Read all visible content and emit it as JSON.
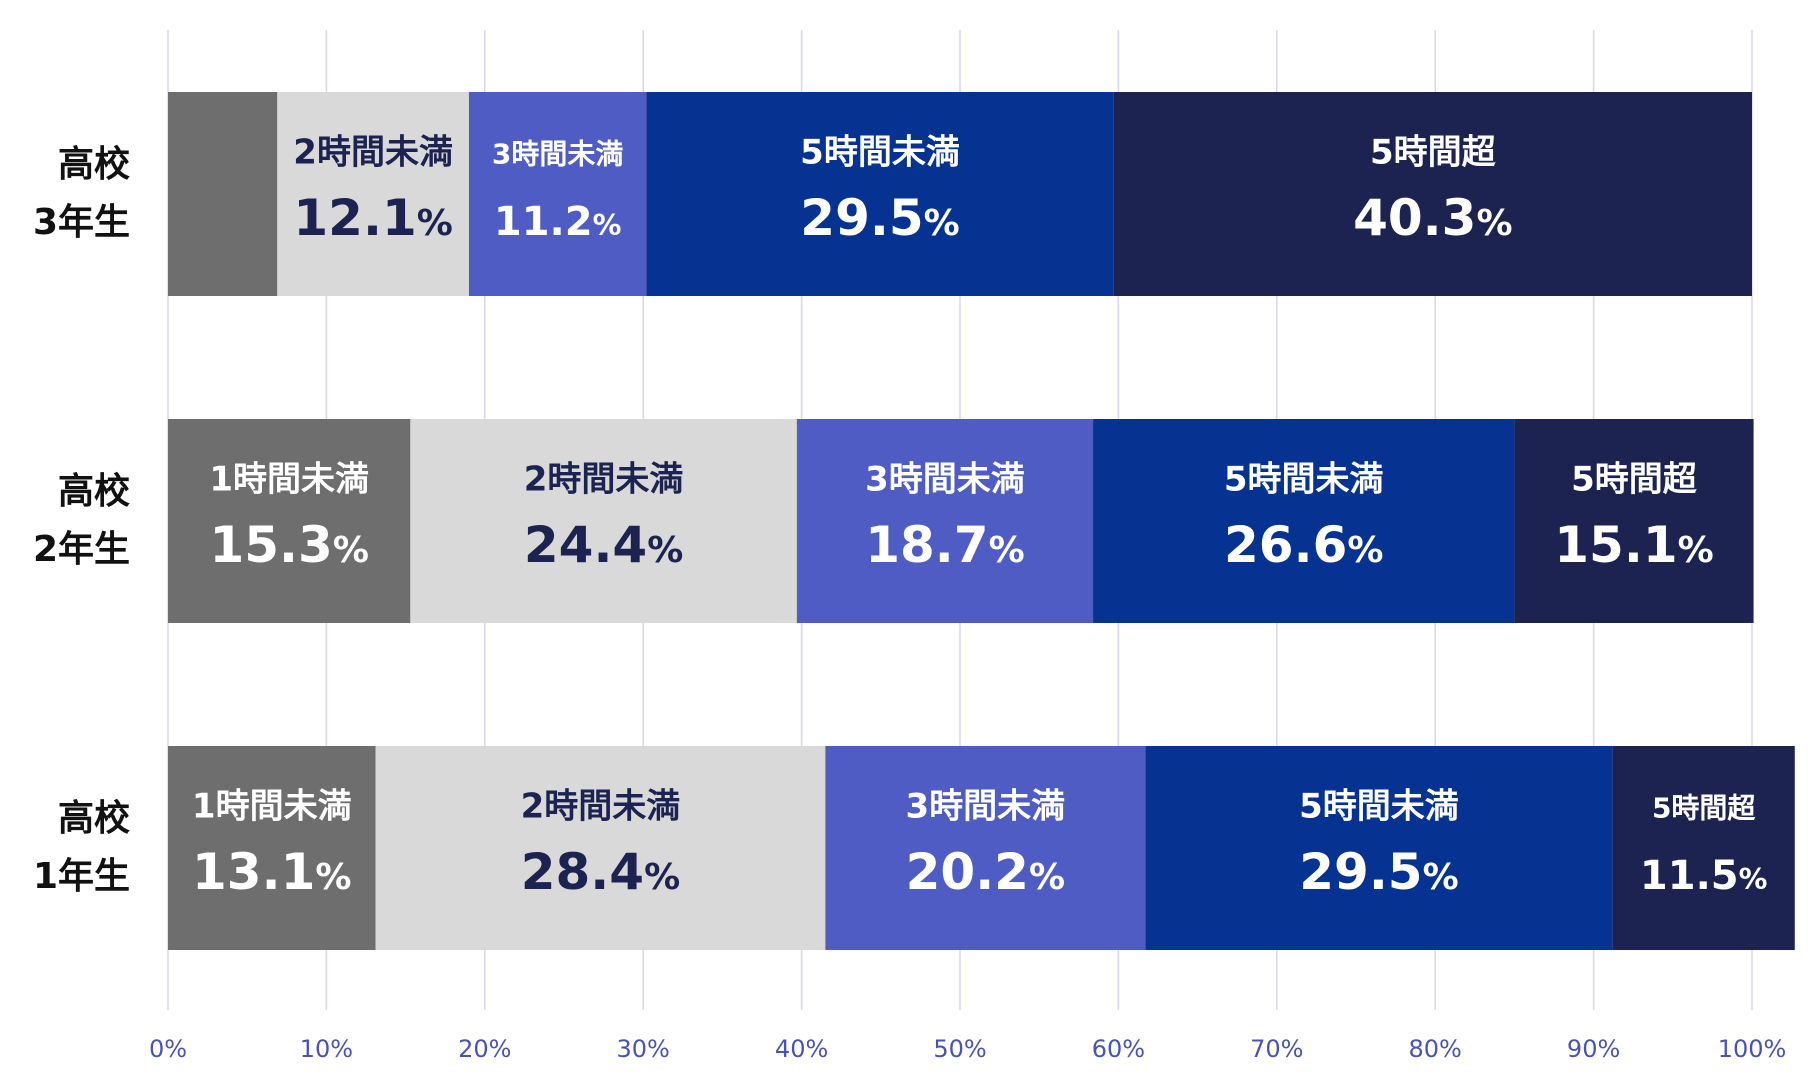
{
  "chart_data": {
    "type": "bar",
    "orientation": "horizontal",
    "stacked": true,
    "title": "",
    "xlabel": "",
    "ylabel": "",
    "xlim": [
      0,
      100
    ],
    "x_ticks": [
      "0%",
      "10%",
      "20%",
      "30%",
      "40%",
      "50%",
      "60%",
      "70%",
      "80%",
      "90%",
      "100%"
    ],
    "grid": true,
    "legend": "none",
    "percent_sign": "%",
    "categories": [
      {
        "line1": "高校",
        "line2": "3年生"
      },
      {
        "line1": "高校",
        "line2": "2年生"
      },
      {
        "line1": "高校",
        "line2": "1年生"
      }
    ],
    "series": [
      {
        "label": "1時間未満",
        "color": "#6e6e6e",
        "text_color": "#ffffff",
        "values": [
          6.9,
          15.3,
          13.1
        ],
        "shown": [
          "",
          "15.3",
          "13.1"
        ]
      },
      {
        "label": "2時間未満",
        "color": "#d9d9d9",
        "text_color": "#1c2350",
        "values": [
          12.1,
          24.4,
          28.4
        ],
        "shown": [
          "12.1",
          "24.4",
          "28.4"
        ]
      },
      {
        "label": "3時間未満",
        "color": "#4f5cc3",
        "text_color": "#ffffff",
        "values": [
          11.2,
          18.7,
          20.2
        ],
        "shown": [
          "11.2",
          "18.7",
          "20.2"
        ]
      },
      {
        "label": "5時間未満",
        "color": "#063291",
        "text_color": "#ffffff",
        "values": [
          29.5,
          26.6,
          29.5
        ],
        "shown": [
          "29.5",
          "26.6",
          "29.5"
        ]
      },
      {
        "label": "5時間超",
        "color": "#1d2350",
        "text_color": "#ffffff",
        "values": [
          40.3,
          15.1,
          11.5
        ],
        "shown": [
          "40.3",
          "15.1",
          "11.5"
        ]
      }
    ]
  }
}
